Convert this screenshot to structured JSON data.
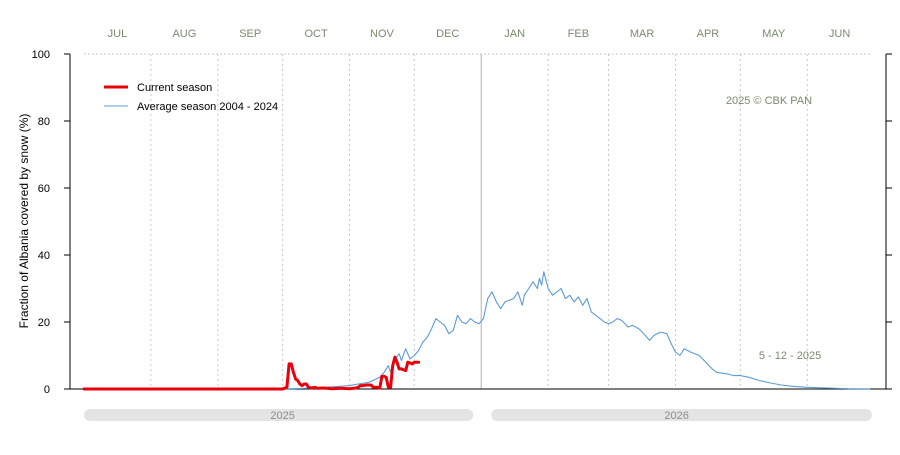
{
  "chart_data": {
    "type": "line",
    "ylabel": "Fraction of  Albania  covered by snow (%)",
    "ylim": [
      0,
      100
    ],
    "yticks": [
      0,
      20,
      40,
      60,
      80,
      100
    ],
    "months": [
      "JUL",
      "AUG",
      "SEP",
      "OCT",
      "NOV",
      "DEC",
      "JAN",
      "FEB",
      "MAR",
      "APR",
      "MAY",
      "JUN"
    ],
    "x_domain": [
      "2025-07-01",
      "2026-06-30"
    ],
    "years": [
      {
        "label": "2025",
        "from": "2025-07-01",
        "to": "2025-12-31"
      },
      {
        "label": "2026",
        "from": "2026-01-01",
        "to": "2026-06-30"
      }
    ],
    "credit": "2025  © CBK PAN",
    "date_label": "5 - 12 - 2025",
    "legend": [
      {
        "name": "Current season",
        "color": "#e8000b"
      },
      {
        "name": "Average season 2004 - 2024",
        "color": "#5b9bd5"
      }
    ],
    "series": [
      {
        "name": "Current season",
        "color": "#e8000b",
        "points": [
          [
            "2025-07-01",
            0
          ],
          [
            "2025-08-01",
            0
          ],
          [
            "2025-09-01",
            0
          ],
          [
            "2025-10-01",
            0
          ],
          [
            "2025-10-03",
            0.5
          ],
          [
            "2025-10-04",
            7.5
          ],
          [
            "2025-10-05",
            7.5
          ],
          [
            "2025-10-06",
            5
          ],
          [
            "2025-10-07",
            3
          ],
          [
            "2025-10-08",
            2.5
          ],
          [
            "2025-10-09",
            1.5
          ],
          [
            "2025-10-10",
            1
          ],
          [
            "2025-10-11",
            1.5
          ],
          [
            "2025-10-12",
            1.5
          ],
          [
            "2025-10-13",
            0.5
          ],
          [
            "2025-10-14",
            0.3
          ],
          [
            "2025-10-16",
            0.5
          ],
          [
            "2025-10-17",
            0.2
          ],
          [
            "2025-10-20",
            0.3
          ],
          [
            "2025-10-24",
            0.1
          ],
          [
            "2025-10-28",
            0.2
          ],
          [
            "2025-11-01",
            0.1
          ],
          [
            "2025-11-03",
            0.2
          ],
          [
            "2025-11-05",
            0.5
          ],
          [
            "2025-11-06",
            1
          ],
          [
            "2025-11-07",
            1
          ],
          [
            "2025-11-09",
            1.2
          ],
          [
            "2025-11-11",
            1.2
          ],
          [
            "2025-11-12",
            0.5
          ],
          [
            "2025-11-14",
            0.5
          ],
          [
            "2025-11-15",
            0.3
          ],
          [
            "2025-11-16",
            3.8
          ],
          [
            "2025-11-17",
            3.8
          ],
          [
            "2025-11-18",
            3.5
          ],
          [
            "2025-11-19",
            0.5
          ],
          [
            "2025-11-20",
            0.5
          ],
          [
            "2025-11-21",
            7
          ],
          [
            "2025-11-22",
            9.5
          ],
          [
            "2025-11-23",
            8
          ],
          [
            "2025-11-24",
            6
          ],
          [
            "2025-11-25",
            6
          ],
          [
            "2025-11-27",
            5.5
          ],
          [
            "2025-11-28",
            8
          ],
          [
            "2025-11-29",
            7.8
          ],
          [
            "2025-11-30",
            7.5
          ],
          [
            "2025-12-01",
            8
          ],
          [
            "2025-12-02",
            8
          ],
          [
            "2025-12-03",
            8
          ]
        ]
      },
      {
        "name": "Average season 2004 - 2024",
        "color": "#5b9bd5",
        "points": [
          [
            "2025-07-01",
            0
          ],
          [
            "2025-09-01",
            0
          ],
          [
            "2025-09-25",
            0
          ],
          [
            "2025-10-05",
            0.1
          ],
          [
            "2025-10-15",
            0.3
          ],
          [
            "2025-10-25",
            0.7
          ],
          [
            "2025-11-01",
            1
          ],
          [
            "2025-11-05",
            1.5
          ],
          [
            "2025-11-10",
            2
          ],
          [
            "2025-11-15",
            3.5
          ],
          [
            "2025-11-17",
            5
          ],
          [
            "2025-11-19",
            7
          ],
          [
            "2025-11-20",
            5
          ],
          [
            "2025-11-22",
            9
          ],
          [
            "2025-11-24",
            10.5
          ],
          [
            "2025-11-25",
            8.5
          ],
          [
            "2025-11-27",
            12
          ],
          [
            "2025-11-29",
            9
          ],
          [
            "2025-12-01",
            10
          ],
          [
            "2025-12-03",
            11.5
          ],
          [
            "2025-12-05",
            14
          ],
          [
            "2025-12-07",
            15.5
          ],
          [
            "2025-12-09",
            18
          ],
          [
            "2025-12-11",
            21
          ],
          [
            "2025-12-13",
            20
          ],
          [
            "2025-12-15",
            19
          ],
          [
            "2025-12-17",
            16.5
          ],
          [
            "2025-12-19",
            17.5
          ],
          [
            "2025-12-21",
            22
          ],
          [
            "2025-12-23",
            20
          ],
          [
            "2025-12-25",
            19.5
          ],
          [
            "2025-12-27",
            21
          ],
          [
            "2025-12-29",
            20
          ],
          [
            "2025-12-31",
            19.5
          ],
          [
            "2026-01-02",
            21
          ],
          [
            "2026-01-04",
            27
          ],
          [
            "2026-01-06",
            29
          ],
          [
            "2026-01-08",
            26
          ],
          [
            "2026-01-10",
            24
          ],
          [
            "2026-01-12",
            26
          ],
          [
            "2026-01-14",
            26.5
          ],
          [
            "2026-01-16",
            27
          ],
          [
            "2026-01-18",
            29
          ],
          [
            "2026-01-20",
            25
          ],
          [
            "2026-01-21",
            28
          ],
          [
            "2026-01-23",
            30
          ],
          [
            "2026-01-25",
            32
          ],
          [
            "2026-01-27",
            30
          ],
          [
            "2026-01-28",
            33
          ],
          [
            "2026-01-29",
            31
          ],
          [
            "2026-01-30",
            35
          ],
          [
            "2026-02-01",
            30
          ],
          [
            "2026-02-03",
            28
          ],
          [
            "2026-02-05",
            29
          ],
          [
            "2026-02-07",
            30
          ],
          [
            "2026-02-09",
            27
          ],
          [
            "2026-02-11",
            28
          ],
          [
            "2026-02-13",
            26
          ],
          [
            "2026-02-15",
            27.5
          ],
          [
            "2026-02-17",
            25
          ],
          [
            "2026-02-19",
            27
          ],
          [
            "2026-02-21",
            23
          ],
          [
            "2026-02-23",
            22
          ],
          [
            "2026-02-25",
            21
          ],
          [
            "2026-02-27",
            20
          ],
          [
            "2026-03-01",
            19.5
          ],
          [
            "2026-03-03",
            20
          ],
          [
            "2026-03-05",
            21
          ],
          [
            "2026-03-07",
            20.5
          ],
          [
            "2026-03-10",
            18.5
          ],
          [
            "2026-03-12",
            19
          ],
          [
            "2026-03-15",
            18
          ],
          [
            "2026-03-18",
            16
          ],
          [
            "2026-03-20",
            14.5
          ],
          [
            "2026-03-22",
            16
          ],
          [
            "2026-03-25",
            17
          ],
          [
            "2026-03-28",
            16.5
          ],
          [
            "2026-03-30",
            13.5
          ],
          [
            "2026-04-01",
            11
          ],
          [
            "2026-04-03",
            10
          ],
          [
            "2026-04-05",
            12
          ],
          [
            "2026-04-08",
            11
          ],
          [
            "2026-04-12",
            10
          ],
          [
            "2026-04-15",
            8
          ],
          [
            "2026-04-18",
            6
          ],
          [
            "2026-04-20",
            5
          ],
          [
            "2026-04-25",
            4.5
          ],
          [
            "2026-04-28",
            4
          ],
          [
            "2026-05-01",
            4
          ],
          [
            "2026-05-05",
            3.5
          ],
          [
            "2026-05-10",
            2.5
          ],
          [
            "2026-05-15",
            1.8
          ],
          [
            "2026-05-20",
            1.2
          ],
          [
            "2026-05-25",
            0.8
          ],
          [
            "2026-06-01",
            0.5
          ],
          [
            "2026-06-10",
            0.3
          ],
          [
            "2026-06-20",
            0.1
          ],
          [
            "2026-06-30",
            0.05
          ]
        ]
      }
    ]
  }
}
